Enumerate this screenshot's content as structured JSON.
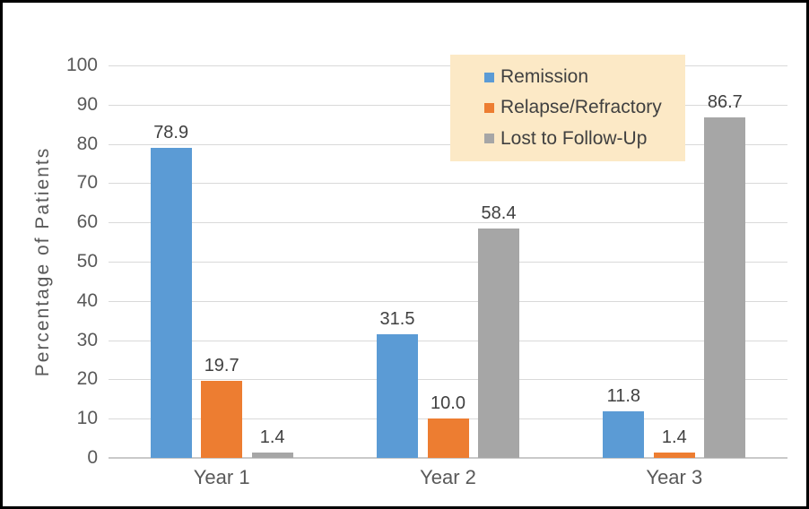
{
  "figure": {
    "background": "#FFFFFF",
    "border_color": "#000000"
  },
  "chart_data": {
    "type": "bar",
    "title": "",
    "xlabel": "",
    "ylabel": "Percentage of Patients",
    "ylim": [
      0,
      100
    ],
    "ytick_step": 10,
    "ytick_labels": [
      "0",
      "10",
      "20",
      "30",
      "40",
      "50",
      "60",
      "70",
      "80",
      "90",
      "100"
    ],
    "categories": [
      "Year 1",
      "Year 2",
      "Year 3"
    ],
    "series": [
      {
        "name": "Remission",
        "color": "#5B9BD5",
        "values": [
          78.9,
          31.5,
          11.8
        ],
        "labels": [
          "78.9",
          "31.5",
          "11.8"
        ]
      },
      {
        "name": "Relapse/Refractory",
        "color": "#ED7D31",
        "values": [
          19.7,
          10.0,
          1.4
        ],
        "labels": [
          "19.7",
          "10.0",
          "1.4"
        ]
      },
      {
        "name": "Lost to Follow-Up",
        "color": "#A6A6A6",
        "values": [
          1.4,
          58.4,
          86.7
        ],
        "labels": [
          "1.4",
          "58.4",
          "86.7"
        ]
      }
    ],
    "grid": true,
    "gridline_color": "#D9D9D9",
    "axis_line_color": "#C9C9C9",
    "tick_label_color": "#595959",
    "data_label_color": "#404040",
    "legend": {
      "position": "top-right-inside",
      "background": "#FCE9C6",
      "entries": [
        "Remission",
        "Relapse/Refractory",
        "Lost to Follow-Up"
      ]
    }
  }
}
